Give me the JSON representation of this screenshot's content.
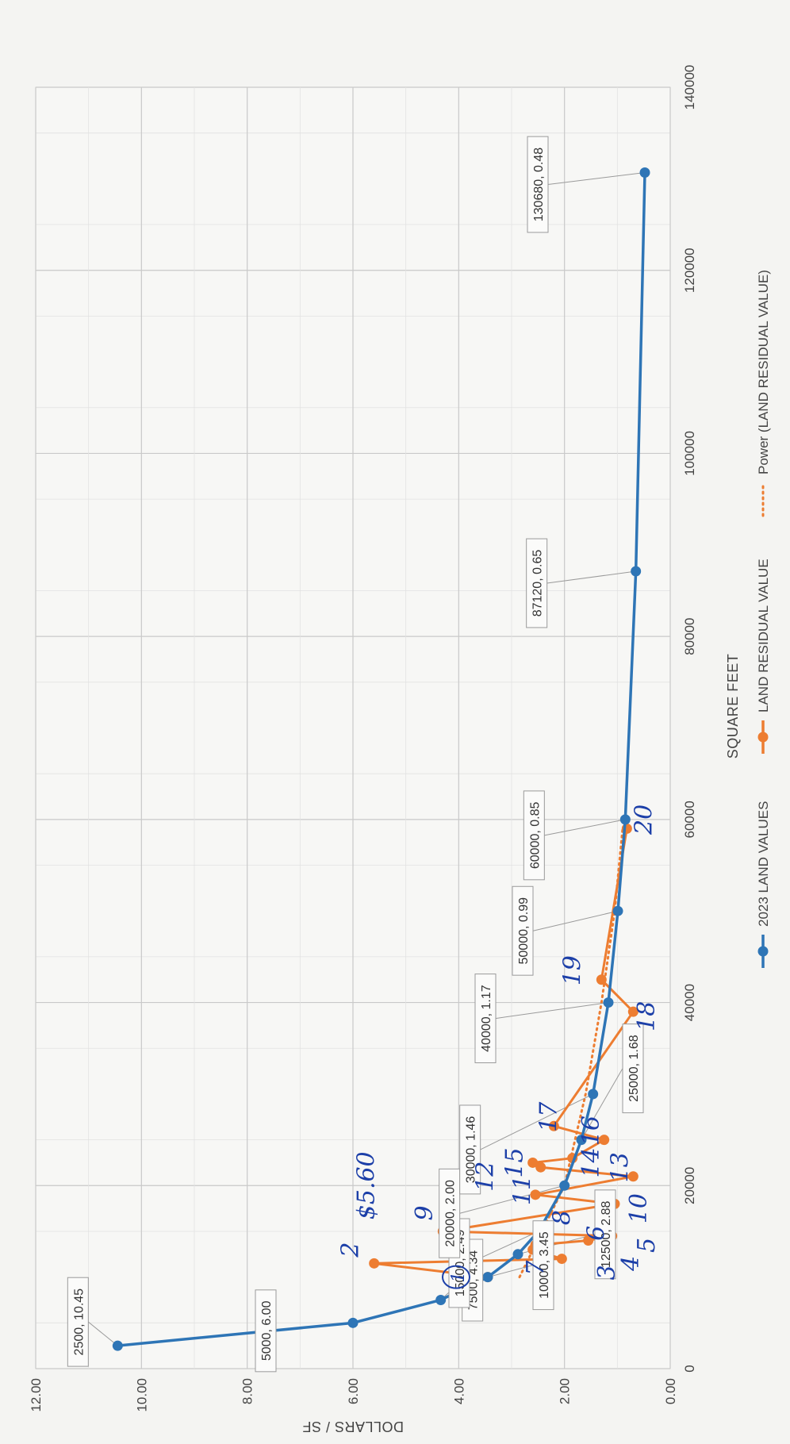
{
  "chart_data": {
    "type": "line",
    "title": "",
    "xlabel": "SQUARE FEET",
    "ylabel": "DOLLARS / SF",
    "xlim": [
      0,
      140000
    ],
    "ylim": [
      0,
      12
    ],
    "x_ticks": [
      "0",
      "20000",
      "40000",
      "60000",
      "80000",
      "100000",
      "120000",
      "140000"
    ],
    "y_ticks": [
      "0.00",
      "2.00",
      "4.00",
      "6.00",
      "8.00",
      "10.00",
      "12.00"
    ],
    "grid": true,
    "legend_position": "bottom",
    "series": [
      {
        "name": "2023 LAND VALUES",
        "color": "#2e75b6",
        "marker": "circle",
        "x": [
          2500,
          5000,
          7500,
          10000,
          12500,
          15000,
          20000,
          25000,
          30000,
          40000,
          50000,
          60000,
          87120,
          130680
        ],
        "y": [
          10.45,
          6.0,
          4.34,
          3.45,
          2.88,
          2.49,
          2.0,
          1.68,
          1.46,
          1.17,
          0.99,
          0.85,
          0.65,
          0.48
        ],
        "labels": [
          "2500, 10.45",
          "5000, 6.00",
          "7500, 4.34",
          "10000, 3.45",
          "12500, 2.88",
          "15000, 2.49",
          "20000, 2.00",
          "25000, 1.68",
          "30000, 1.46",
          "40000, 1.17",
          "50000, 0.99",
          "60000, 0.85",
          "87120, 0.65",
          "130680, 0.48"
        ]
      },
      {
        "name": "LAND RESIDUAL VALUE",
        "color": "#ed7d31",
        "marker": "circle",
        "x": [
          10000,
          11500,
          12000,
          13000,
          13500,
          14000,
          14500,
          15000,
          18000,
          19000,
          21000,
          22000,
          22500,
          23000,
          25000,
          26500,
          39000,
          42500,
          59000
        ],
        "y": [
          3.45,
          5.6,
          2.05,
          2.6,
          2.55,
          1.55,
          1.1,
          4.3,
          1.05,
          2.55,
          0.7,
          2.45,
          2.6,
          1.85,
          1.25,
          2.2,
          0.7,
          1.3,
          0.82
        ]
      },
      {
        "name": "Power (LAND RESIDUAL VALUE)",
        "color": "#ed7d31",
        "style": "dotted",
        "x": [
          10000,
          20000,
          30000,
          40000,
          50000,
          59000
        ],
        "y": [
          2.85,
          2.0,
          1.6,
          1.3,
          1.05,
          0.9
        ]
      }
    ],
    "annotations": [
      {
        "text": "1",
        "x": 10000,
        "y": 3.9,
        "circled": true
      },
      {
        "text": "2",
        "x": 13000,
        "y": 5.9
      },
      {
        "text": "$5.60",
        "x": 20000,
        "y": 5.6
      },
      {
        "text": "3",
        "x": 10500,
        "y": 1.05
      },
      {
        "text": "4",
        "x": 11500,
        "y": 0.6
      },
      {
        "text": "5",
        "x": 13500,
        "y": 0.3
      },
      {
        "text": "6",
        "x": 14800,
        "y": 1.25
      },
      {
        "text": "7",
        "x": 11000,
        "y": 2.4
      },
      {
        "text": "8",
        "x": 16500,
        "y": 1.9
      },
      {
        "text": "9",
        "x": 17000,
        "y": 4.5
      },
      {
        "text": "10",
        "x": 17500,
        "y": 0.45
      },
      {
        "text": "11",
        "x": 19500,
        "y": 2.65
      },
      {
        "text": "12",
        "x": 21000,
        "y": 3.35
      },
      {
        "text": "15",
        "x": 22500,
        "y": 2.8
      },
      {
        "text": "13",
        "x": 22000,
        "y": 0.8
      },
      {
        "text": "14",
        "x": 22500,
        "y": 1.35
      },
      {
        "text": "16",
        "x": 26000,
        "y": 1.35
      },
      {
        "text": "17",
        "x": 27500,
        "y": 2.15
      },
      {
        "text": "18",
        "x": 38500,
        "y": 0.3
      },
      {
        "text": "19",
        "x": 43500,
        "y": 1.7
      },
      {
        "text": "20",
        "x": 60000,
        "y": 0.35
      }
    ]
  }
}
